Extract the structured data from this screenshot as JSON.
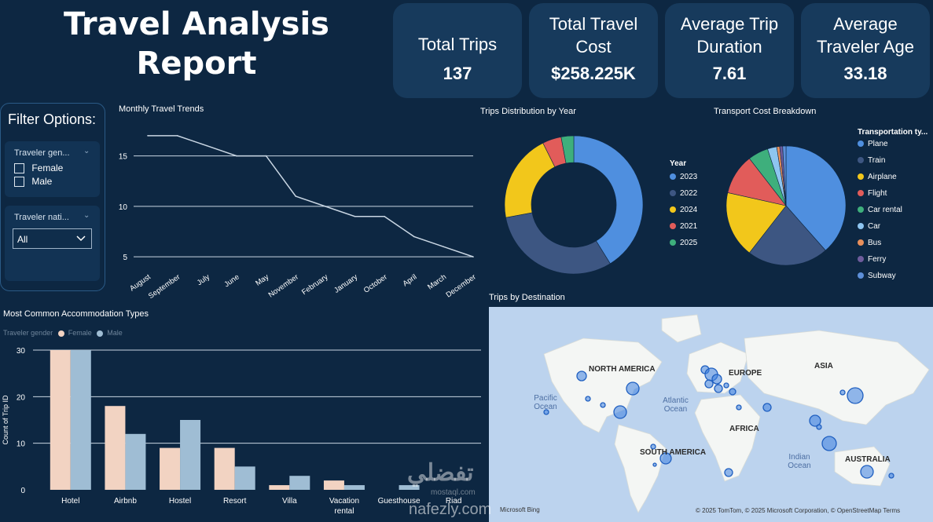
{
  "report_title": "Travel Analysis Report",
  "kpis": [
    {
      "label": "Total Trips",
      "value": "137"
    },
    {
      "label": "Total Travel Cost",
      "value": "$258.225K"
    },
    {
      "label": "Average Trip Duration",
      "value": "7.61"
    },
    {
      "label": "Average Traveler Age",
      "value": "33.18"
    }
  ],
  "filter": {
    "title": "Filter Options:",
    "gender_header": "Traveler gen...",
    "gender_options": [
      "Female",
      "Male"
    ],
    "nationality_header": "Traveler nati...",
    "nationality_value": "All"
  },
  "monthly": {
    "title": "Monthly Travel Trends"
  },
  "donut": {
    "title": "Trips Distribution by Year",
    "legend_title": "Year"
  },
  "pie": {
    "title": "Transport Cost Breakdown",
    "legend_title": "Transportation ty..."
  },
  "accom": {
    "title": "Most Common Accommodation Types",
    "legend_title": "Traveler gender",
    "ylabel": "Count of Trip ID"
  },
  "map": {
    "title": "Trips by Destination",
    "continents": [
      "NORTH AMERICA",
      "EUROPE",
      "ASIA",
      "AFRICA",
      "SOUTH AMERICA",
      "AUSTRALIA"
    ],
    "oceans": [
      "Pacific Ocean",
      "Atlantic Ocean",
      "Indian Ocean"
    ],
    "attribution": "© 2025 TomTom, © 2025 Microsoft Corporation, © OpenStreetMap  Terms",
    "bing": "Microsoft Bing"
  },
  "watermark": {
    "arabic": "تفضلي",
    "latin": "nafezly.com",
    "sub": "mostaql.com"
  },
  "colors": {
    "background": "#0d2742",
    "kpi_card": "#173a5c",
    "female": "#f2d3c2",
    "male": "#9fbdd4",
    "line": "#c9d6e3"
  },
  "chart_data": [
    {
      "type": "line",
      "title": "Monthly Travel Trends",
      "categories": [
        "August",
        "September",
        "July",
        "June",
        "May",
        "November",
        "February",
        "January",
        "October",
        "April",
        "March",
        "December"
      ],
      "values": [
        17,
        17,
        16,
        15,
        15,
        11,
        10,
        9,
        9,
        7,
        6,
        5
      ],
      "ylim": [
        4,
        18
      ],
      "yticks": [
        5,
        10,
        15
      ],
      "grid": true
    },
    {
      "type": "pie",
      "title": "Trips Distribution by Year",
      "donut": true,
      "legend_title": "Year",
      "categories": [
        "2023",
        "2022",
        "2024",
        "2021",
        "2025"
      ],
      "values": [
        56,
        42,
        28,
        6,
        4
      ],
      "colors": [
        "#4f8fdf",
        "#3d5682",
        "#f2c71b",
        "#e15c5a",
        "#3eaf7c"
      ]
    },
    {
      "type": "pie",
      "title": "Transport Cost Breakdown",
      "legend_title": "Transportation ty...",
      "categories": [
        "Plane",
        "Train",
        "Airplane",
        "Flight",
        "Car rental",
        "Car",
        "Bus",
        "Ferry",
        "Subway"
      ],
      "values": [
        38.5,
        22,
        18,
        11,
        5.5,
        2.5,
        0.8,
        0.8,
        0.9
      ],
      "colors": [
        "#4f8fdf",
        "#3d5682",
        "#f2c71b",
        "#e15c5a",
        "#3eaf7c",
        "#8ec5f0",
        "#e88f5b",
        "#6e5c9c",
        "#5d8fd8"
      ]
    },
    {
      "type": "bar",
      "title": "Most Common Accommodation Types",
      "legend_title": "Traveler gender",
      "ylabel": "Count of Trip ID",
      "categories": [
        "Hotel",
        "Airbnb",
        "Hostel",
        "Resort",
        "Villa",
        "Vacation rental",
        "Guesthouse",
        "Riad"
      ],
      "series": [
        {
          "name": "Female",
          "values": [
            30,
            18,
            9,
            9,
            1,
            2,
            0,
            0
          ]
        },
        {
          "name": "Male",
          "values": [
            30,
            12,
            15,
            5,
            3,
            1,
            1,
            0
          ]
        }
      ],
      "ylim": [
        0,
        30
      ],
      "yticks": [
        0,
        10,
        20,
        30
      ],
      "grid": true
    }
  ]
}
